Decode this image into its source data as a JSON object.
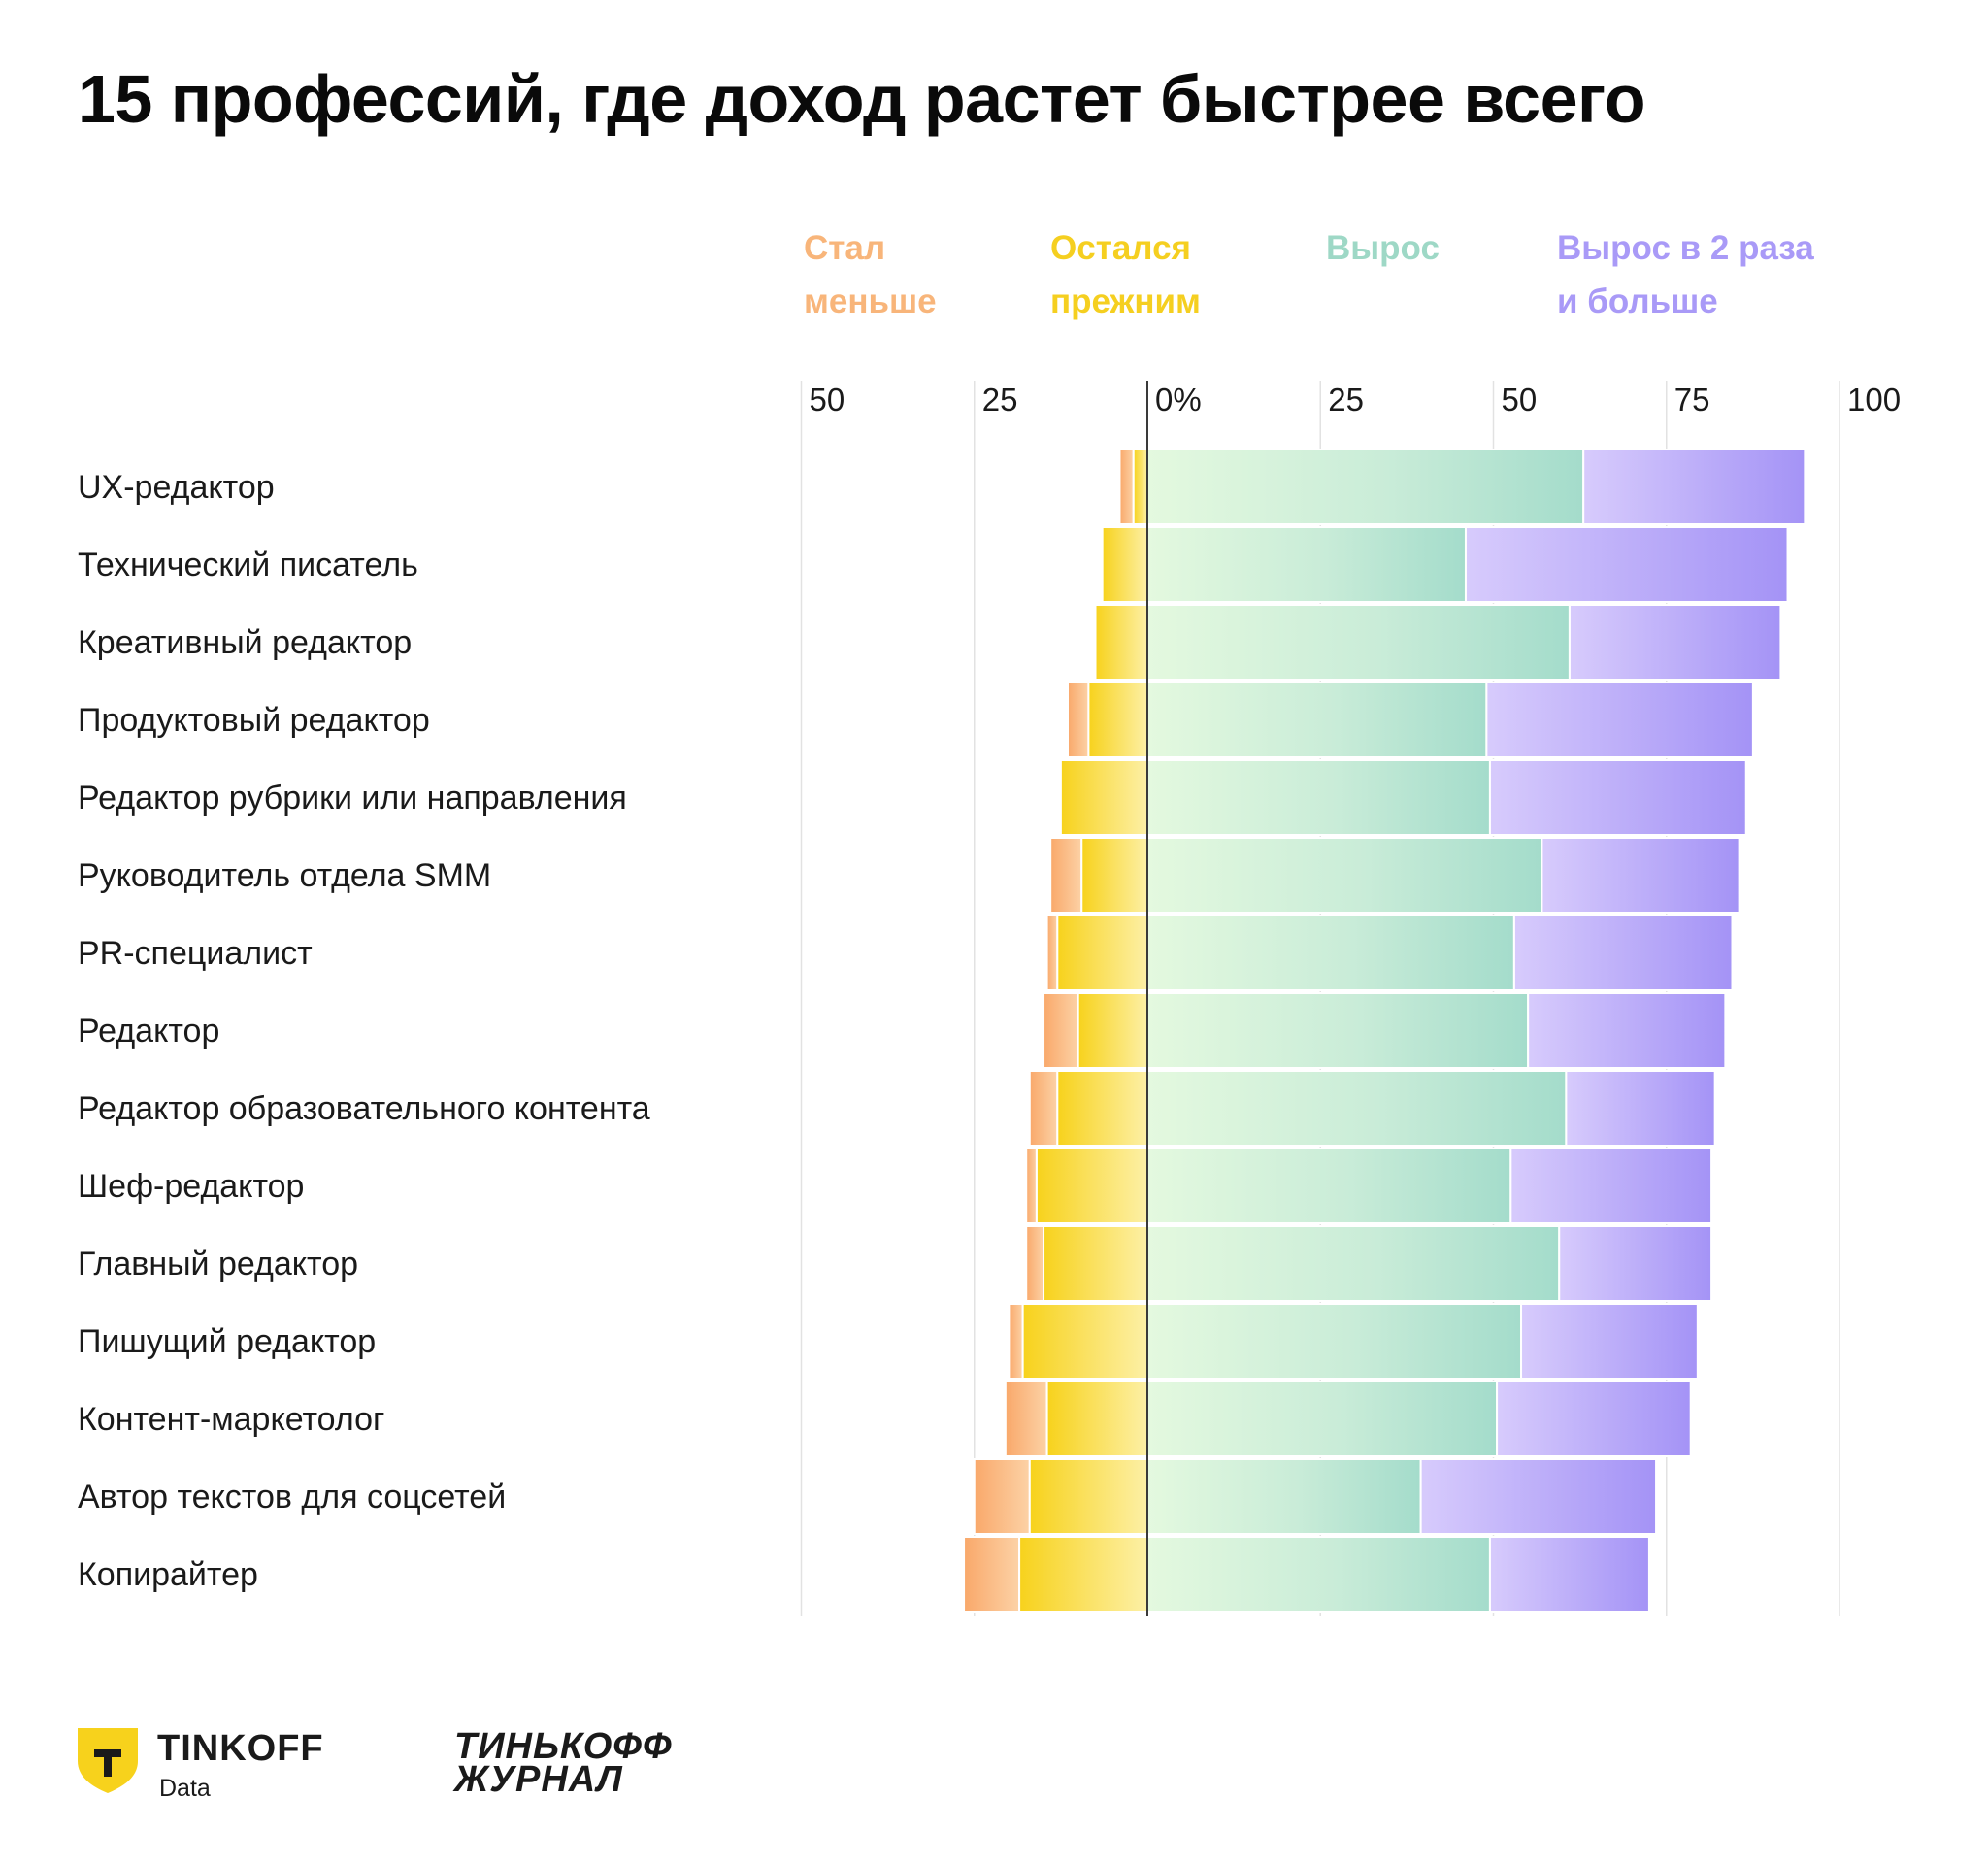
{
  "title": "15 профессий, где доход растет быстрее всего",
  "legend": [
    {
      "line1": "Стал",
      "line2": "меньше",
      "color": "#f8b57a"
    },
    {
      "line1": "Остался",
      "line2": "прежним",
      "color": "#f5cf20"
    },
    {
      "line1": "Вырос",
      "line2": "",
      "color": "#9ed8c6"
    },
    {
      "line1": "Вырос в 2 раза",
      "line2": "и больше",
      "color": "#a99af7"
    }
  ],
  "chart_data": {
    "type": "bar",
    "orientation": "horizontal-diverging-stacked",
    "x_ticks": [
      "50",
      "25",
      "0%",
      "25",
      "50",
      "75",
      "100"
    ],
    "x_tick_values": [
      -50,
      -25,
      0,
      25,
      50,
      75,
      100
    ],
    "xlim": [
      -50,
      100
    ],
    "categories": [
      "UX-редактор",
      "Технический писатель",
      "Креативный редактор",
      "Продуктовый редактор",
      "Редактор рубрики или направления",
      "Руководитель отдела SMM",
      "PR-специалист",
      "Редактор",
      "Редактор образовательного контента",
      "Шеф-редактор",
      "Главный редактор",
      "Пишущий редактор",
      "Контент-маркетолог",
      "Автор текстов для соцсетей",
      "Копирайтер"
    ],
    "series": [
      {
        "name": "Стал меньше",
        "values": [
          2,
          0,
          0,
          3,
          0,
          4.5,
          1.5,
          5,
          4,
          1.5,
          2.5,
          2,
          6,
          8,
          8
        ],
        "color": "#f8b57a"
      },
      {
        "name": "Остался прежним",
        "values": [
          2,
          6.5,
          7.5,
          8.5,
          12.5,
          9.5,
          13,
          10,
          13,
          16,
          15,
          18,
          14.5,
          17,
          18.5
        ],
        "color": "#f5cf20"
      },
      {
        "name": "Вырос",
        "values": [
          63,
          46,
          61,
          49,
          49.5,
          57,
          53,
          55,
          60.5,
          52.5,
          59.5,
          54,
          50.5,
          39.5,
          49.5
        ],
        "color": "#9ed8c6"
      },
      {
        "name": "Вырос в 2 раза и больше",
        "values": [
          32,
          46.5,
          30.5,
          38.5,
          37,
          28.5,
          31.5,
          28.5,
          21.5,
          29,
          22,
          25.5,
          28,
          34,
          23
        ],
        "color": "#a99af7"
      }
    ],
    "grid": true
  },
  "brand": {
    "tinkoff_name": "TINKOFF",
    "tinkoff_sub": "Data",
    "journal_line1": "ТИНЬКОФФ",
    "journal_line2": "ЖУРНАЛ"
  }
}
